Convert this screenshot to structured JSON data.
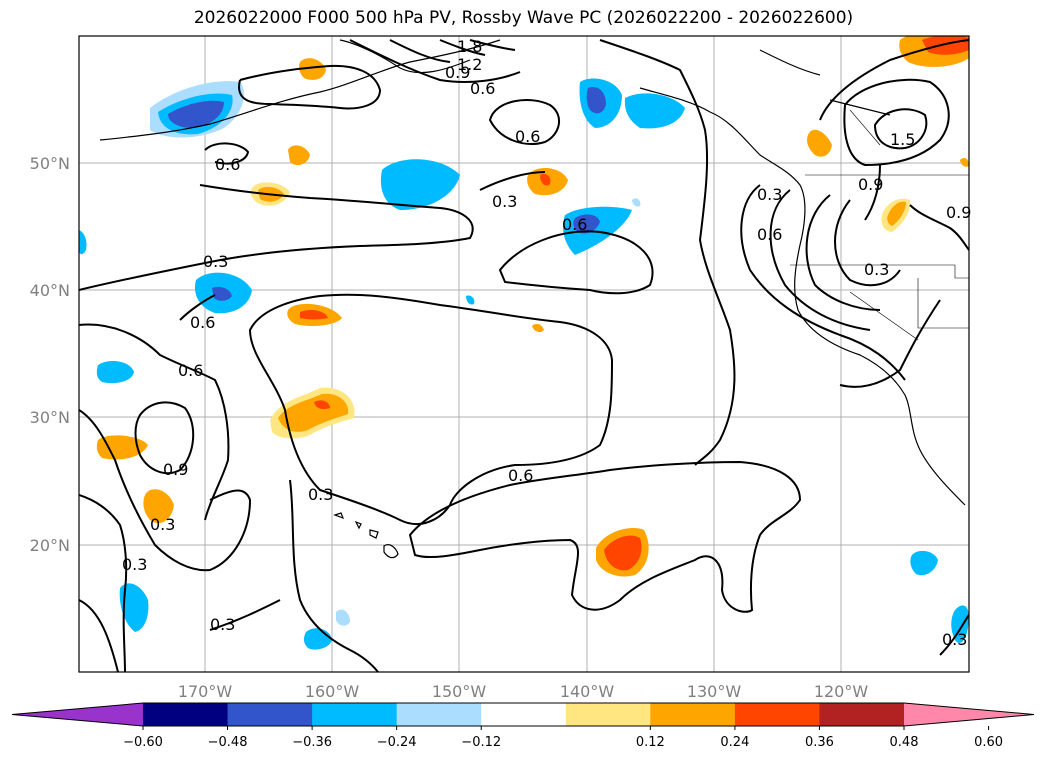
{
  "title": "2026022000 F000 500 hPa PV, Rossby Wave PC (2026022200 - 2026022600)",
  "map": {
    "lat_labels": [
      "50°N",
      "40°N",
      "30°N",
      "20°N"
    ],
    "lon_labels": [
      "170°W",
      "160°W",
      "150°W",
      "140°W",
      "130°W",
      "120°W"
    ]
  },
  "contour_labels": [
    "1.8",
    "1.2",
    "0.9",
    "0.6",
    "0.6",
    "0.6",
    "0.3",
    "0.6",
    "0.3",
    "0.6",
    "0.6",
    "0.9",
    "0.3",
    "0.3",
    "0.3",
    "0.6",
    "0.3",
    "0.3",
    "0.6",
    "0.9",
    "1.5",
    "0.3",
    "0.9",
    "0.3"
  ],
  "colorbar": {
    "ticks": [
      "−0.60",
      "−0.48",
      "−0.36",
      "−0.24",
      "−0.12",
      "0.12",
      "0.24",
      "0.36",
      "0.48",
      "0.60"
    ],
    "colors": [
      "#9933cc",
      "#000080",
      "#3355cc",
      "#00bbff",
      "#aaddff",
      "#ffffff",
      "#ffe680",
      "#ffa500",
      "#ff4500",
      "#b22222",
      "#ff88aa"
    ]
  }
}
